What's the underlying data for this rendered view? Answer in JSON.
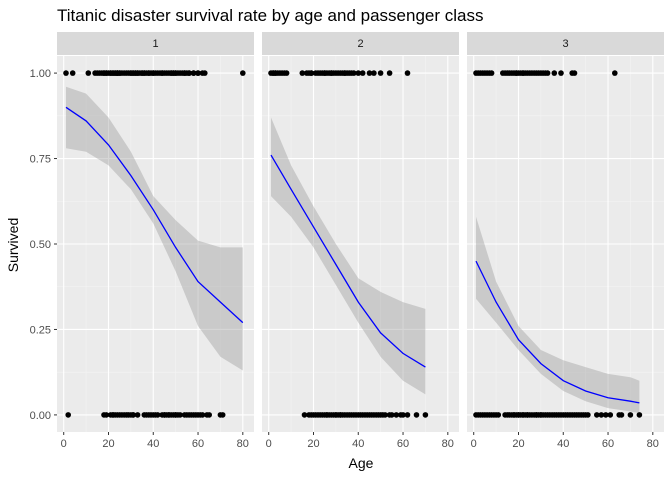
{
  "chart_data": {
    "type": "scatter",
    "title": "Titanic disaster survival rate by age and passenger class",
    "xlabel": "Age",
    "ylabel": "Survived",
    "xlim": [
      -3,
      85
    ],
    "ylim": [
      -0.05,
      1.05
    ],
    "x_ticks": [
      0,
      20,
      40,
      60,
      80
    ],
    "x_tick_labels": [
      "0",
      "20",
      "40",
      "60",
      "80"
    ],
    "y_ticks": [
      0,
      0.25,
      0.5,
      0.75,
      1
    ],
    "y_tick_labels": [
      "0.00",
      "0.25",
      "0.50",
      "0.75",
      "1.00"
    ],
    "facet_by": "passenger class",
    "grid": true,
    "colors": {
      "panel_bg": "#ebebeb",
      "strip_bg": "#d9d9d9",
      "grid_major": "#ffffff",
      "points": "#000000",
      "fit_line": "#0000ff",
      "ribbon": "#999999"
    },
    "facets": [
      {
        "label": "1",
        "points_survived": [
          1,
          4,
          11,
          14,
          15,
          16,
          17,
          18,
          18,
          19,
          19,
          20,
          21,
          21,
          22,
          22,
          23,
          23,
          24,
          24,
          24,
          25,
          25,
          26,
          27,
          28,
          29,
          30,
          30,
          31,
          31,
          32,
          32,
          33,
          33,
          34,
          35,
          35,
          36,
          36,
          37,
          38,
          38,
          39,
          40,
          40,
          41,
          42,
          43,
          44,
          44,
          45,
          46,
          47,
          48,
          48,
          49,
          49,
          50,
          50,
          51,
          52,
          53,
          54,
          54,
          55,
          56,
          56,
          58,
          58,
          60,
          60,
          62,
          63,
          80
        ],
        "points_died": [
          2,
          18,
          19,
          21,
          22,
          22,
          23,
          24,
          25,
          26,
          27,
          28,
          29,
          30,
          31,
          31,
          33,
          36,
          37,
          38,
          39,
          40,
          41,
          42,
          44,
          45,
          45,
          46,
          47,
          47,
          48,
          49,
          50,
          50,
          51,
          52,
          54,
          55,
          56,
          57,
          58,
          59,
          60,
          61,
          62,
          64,
          65,
          70,
          71
        ],
        "fit": {
          "x": [
            1,
            10,
            20,
            30,
            40,
            50,
            60,
            70,
            80
          ],
          "y": [
            0.9,
            0.86,
            0.79,
            0.7,
            0.6,
            0.49,
            0.39,
            0.33,
            0.27
          ],
          "lower": [
            0.78,
            0.77,
            0.73,
            0.66,
            0.56,
            0.42,
            0.26,
            0.17,
            0.13
          ],
          "upper": [
            0.96,
            0.94,
            0.87,
            0.77,
            0.64,
            0.57,
            0.51,
            0.49,
            0.49
          ]
        }
      },
      {
        "label": "2",
        "points_survived": [
          1,
          2,
          2,
          3,
          3,
          4,
          5,
          6,
          7,
          8,
          15,
          17,
          18,
          19,
          19,
          21,
          22,
          23,
          24,
          25,
          25,
          26,
          27,
          28,
          28,
          29,
          30,
          31,
          32,
          33,
          34,
          34,
          35,
          36,
          37,
          38,
          40,
          42,
          45,
          47,
          50,
          54,
          62
        ],
        "points_died": [
          16,
          18,
          19,
          20,
          21,
          22,
          23,
          24,
          25,
          26,
          26,
          27,
          28,
          29,
          30,
          30,
          31,
          32,
          32,
          33,
          34,
          35,
          36,
          37,
          38,
          39,
          40,
          41,
          42,
          43,
          44,
          45,
          46,
          47,
          48,
          49,
          50,
          51,
          52,
          54,
          55,
          57,
          59,
          60,
          62,
          66,
          70
        ],
        "fit": {
          "x": [
            1,
            10,
            20,
            30,
            40,
            50,
            60,
            70
          ],
          "y": [
            0.76,
            0.66,
            0.55,
            0.44,
            0.33,
            0.24,
            0.18,
            0.14
          ],
          "lower": [
            0.64,
            0.58,
            0.49,
            0.38,
            0.27,
            0.17,
            0.1,
            0.06
          ],
          "upper": [
            0.87,
            0.73,
            0.61,
            0.5,
            0.4,
            0.36,
            0.33,
            0.31
          ]
        }
      },
      {
        "label": "3",
        "points_survived": [
          1,
          2,
          3,
          4,
          5,
          6,
          7,
          8,
          13,
          14,
          15,
          16,
          17,
          18,
          19,
          19,
          20,
          21,
          22,
          22,
          23,
          24,
          25,
          26,
          27,
          28,
          29,
          30,
          31,
          32,
          33,
          36,
          39,
          44,
          45,
          63
        ],
        "points_died": [
          1,
          2,
          3,
          4,
          5,
          6,
          7,
          8,
          9,
          10,
          11,
          14,
          15,
          16,
          17,
          18,
          18,
          19,
          20,
          20,
          21,
          22,
          22,
          23,
          24,
          24,
          25,
          26,
          27,
          28,
          28,
          29,
          30,
          30,
          31,
          32,
          33,
          34,
          35,
          36,
          37,
          38,
          39,
          40,
          41,
          42,
          43,
          44,
          45,
          46,
          47,
          48,
          49,
          50,
          51,
          55,
          57,
          59,
          61,
          65,
          66,
          70,
          74
        ],
        "fit": {
          "x": [
            1,
            10,
            20,
            30,
            40,
            50,
            60,
            70,
            74
          ],
          "y": [
            0.45,
            0.33,
            0.22,
            0.15,
            0.1,
            0.07,
            0.05,
            0.04,
            0.035
          ],
          "lower": [
            0.34,
            0.27,
            0.19,
            0.12,
            0.07,
            0.04,
            0.02,
            0.01,
            0.005
          ],
          "upper": [
            0.58,
            0.39,
            0.26,
            0.19,
            0.16,
            0.14,
            0.12,
            0.11,
            0.1
          ]
        }
      }
    ]
  }
}
